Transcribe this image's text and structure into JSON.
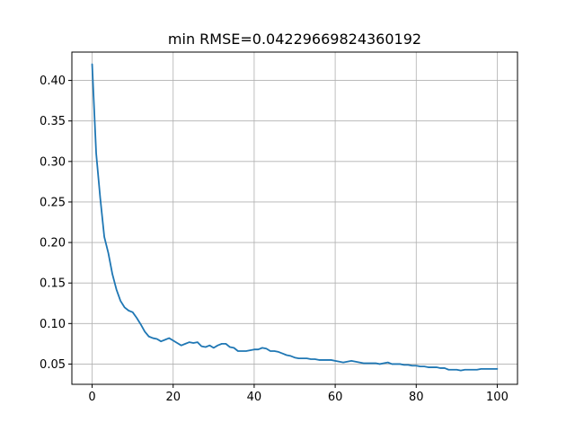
{
  "chart_data": {
    "type": "line",
    "title": "min RMSE=0.04229669824360192",
    "xlabel": "",
    "ylabel": "",
    "xlim": [
      -5,
      105
    ],
    "ylim": [
      0.025,
      0.435
    ],
    "xticks": [
      0,
      20,
      40,
      60,
      80,
      100
    ],
    "xtick_labels": [
      "0",
      "20",
      "40",
      "60",
      "80",
      "100"
    ],
    "yticks": [
      0.05,
      0.1,
      0.15,
      0.2,
      0.25,
      0.3,
      0.35,
      0.4
    ],
    "ytick_labels": [
      "0.05",
      "0.10",
      "0.15",
      "0.20",
      "0.25",
      "0.30",
      "0.35",
      "0.40"
    ],
    "grid": true,
    "line_color": "#1f77b4",
    "series": [
      {
        "x": [
          0,
          1,
          2,
          3,
          4,
          5,
          6,
          7,
          8,
          9,
          10,
          11,
          12,
          13,
          14,
          15,
          16,
          17,
          18,
          19,
          20,
          21,
          22,
          23,
          24,
          25,
          26,
          27,
          28,
          29,
          30,
          31,
          32,
          33,
          34,
          35,
          36,
          37,
          38,
          39,
          40,
          41,
          42,
          43,
          44,
          45,
          46,
          47,
          48,
          49,
          50,
          51,
          52,
          53,
          54,
          55,
          56,
          57,
          58,
          59,
          60,
          61,
          62,
          63,
          64,
          65,
          66,
          67,
          68,
          69,
          70,
          71,
          72,
          73,
          74,
          75,
          76,
          77,
          78,
          79,
          80,
          81,
          82,
          83,
          84,
          85,
          86,
          87,
          88,
          89,
          90,
          91,
          92,
          93,
          94,
          95,
          96,
          97,
          98,
          99,
          100
        ],
        "y": [
          0.42,
          0.31,
          0.255,
          0.207,
          0.187,
          0.161,
          0.142,
          0.128,
          0.12,
          0.116,
          0.114,
          0.107,
          0.099,
          0.09,
          0.084,
          0.082,
          0.081,
          0.078,
          0.08,
          0.082,
          0.079,
          0.076,
          0.073,
          0.075,
          0.077,
          0.076,
          0.077,
          0.072,
          0.071,
          0.073,
          0.07,
          0.073,
          0.075,
          0.075,
          0.071,
          0.07,
          0.066,
          0.066,
          0.066,
          0.067,
          0.068,
          0.068,
          0.07,
          0.069,
          0.066,
          0.066,
          0.065,
          0.063,
          0.061,
          0.06,
          0.058,
          0.057,
          0.057,
          0.057,
          0.056,
          0.056,
          0.055,
          0.055,
          0.055,
          0.055,
          0.054,
          0.053,
          0.052,
          0.053,
          0.054,
          0.053,
          0.052,
          0.051,
          0.051,
          0.051,
          0.051,
          0.05,
          0.051,
          0.052,
          0.05,
          0.05,
          0.05,
          0.049,
          0.049,
          0.048,
          0.048,
          0.047,
          0.047,
          0.046,
          0.046,
          0.046,
          0.045,
          0.045,
          0.043,
          0.043,
          0.043,
          0.042,
          0.043,
          0.043,
          0.043,
          0.043,
          0.044,
          0.044,
          0.044,
          0.044,
          0.044
        ]
      }
    ]
  }
}
